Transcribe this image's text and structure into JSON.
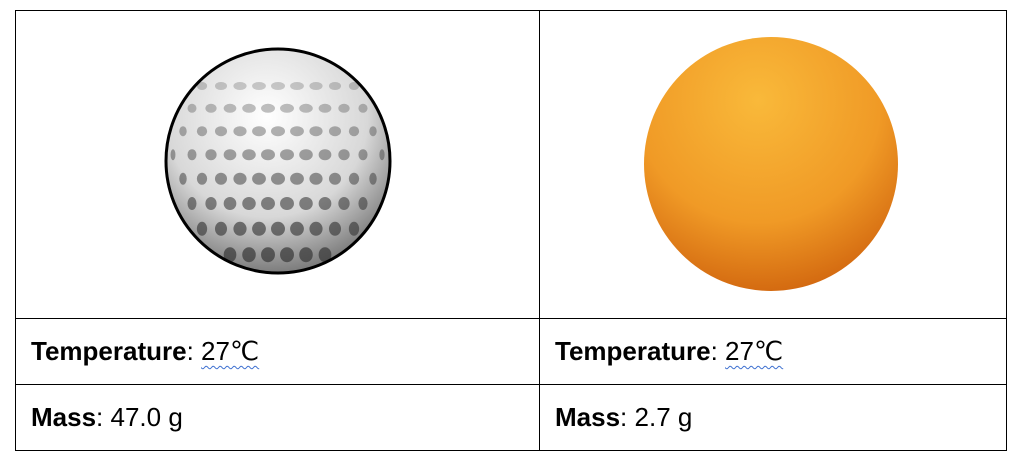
{
  "table": {
    "rows": [
      [
        {
          "label": "Temperature",
          "separator": ":",
          "value": "27℃"
        },
        {
          "label": "Temperature",
          "separator": ":",
          "value": "27℃"
        }
      ],
      [
        {
          "label": "Mass",
          "separator": ":",
          "value": "47.0 g"
        },
        {
          "label": "Mass",
          "separator": ":",
          "value": "2.7 g"
        }
      ]
    ]
  }
}
